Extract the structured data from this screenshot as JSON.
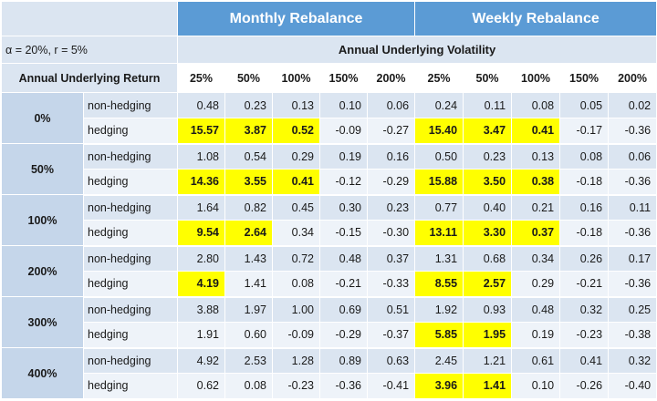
{
  "header": {
    "monthly": "Monthly Rebalance",
    "weekly": "Weekly Rebalance",
    "params": "α = 20%, r = 5%",
    "vol_title": "Annual Underlying Volatility",
    "return_title": "Annual Underlying Return",
    "vols": [
      "25%",
      "50%",
      "100%",
      "150%",
      "200%",
      "25%",
      "50%",
      "100%",
      "150%",
      "200%"
    ]
  },
  "groups": [
    {
      "label": "0%",
      "rows": [
        {
          "kind": "non-hedging",
          "values": [
            "0.48",
            "0.23",
            "0.13",
            "0.10",
            "0.06",
            "0.24",
            "0.11",
            "0.08",
            "0.05",
            "0.02"
          ],
          "hl": [
            false,
            false,
            false,
            false,
            false,
            false,
            false,
            false,
            false,
            false
          ]
        },
        {
          "kind": "hedging",
          "values": [
            "15.57",
            "3.87",
            "0.52",
            "-0.09",
            "-0.27",
            "15.40",
            "3.47",
            "0.41",
            "-0.17",
            "-0.36"
          ],
          "hl": [
            true,
            true,
            true,
            false,
            false,
            true,
            true,
            true,
            false,
            false
          ]
        }
      ]
    },
    {
      "label": "50%",
      "rows": [
        {
          "kind": "non-hedging",
          "values": [
            "1.08",
            "0.54",
            "0.29",
            "0.19",
            "0.16",
            "0.50",
            "0.23",
            "0.13",
            "0.08",
            "0.06"
          ],
          "hl": [
            false,
            false,
            false,
            false,
            false,
            false,
            false,
            false,
            false,
            false
          ]
        },
        {
          "kind": "hedging",
          "values": [
            "14.36",
            "3.55",
            "0.41",
            "-0.12",
            "-0.29",
            "15.88",
            "3.50",
            "0.38",
            "-0.18",
            "-0.36"
          ],
          "hl": [
            true,
            true,
            true,
            false,
            false,
            true,
            true,
            true,
            false,
            false
          ]
        }
      ]
    },
    {
      "label": "100%",
      "rows": [
        {
          "kind": "non-hedging",
          "values": [
            "1.64",
            "0.82",
            "0.45",
            "0.30",
            "0.23",
            "0.77",
            "0.40",
            "0.21",
            "0.16",
            "0.11"
          ],
          "hl": [
            false,
            false,
            false,
            false,
            false,
            false,
            false,
            false,
            false,
            false
          ]
        },
        {
          "kind": "hedging",
          "values": [
            "9.54",
            "2.64",
            "0.34",
            "-0.15",
            "-0.30",
            "13.11",
            "3.30",
            "0.37",
            "-0.18",
            "-0.36"
          ],
          "hl": [
            true,
            true,
            false,
            false,
            false,
            true,
            true,
            true,
            false,
            false
          ]
        }
      ]
    },
    {
      "label": "200%",
      "rows": [
        {
          "kind": "non-hedging",
          "values": [
            "2.80",
            "1.43",
            "0.72",
            "0.48",
            "0.37",
            "1.31",
            "0.68",
            "0.34",
            "0.26",
            "0.17"
          ],
          "hl": [
            false,
            false,
            false,
            false,
            false,
            false,
            false,
            false,
            false,
            false
          ]
        },
        {
          "kind": "hedging",
          "values": [
            "4.19",
            "1.41",
            "0.08",
            "-0.21",
            "-0.33",
            "8.55",
            "2.57",
            "0.29",
            "-0.21",
            "-0.36"
          ],
          "hl": [
            true,
            false,
            false,
            false,
            false,
            true,
            true,
            false,
            false,
            false
          ]
        }
      ]
    },
    {
      "label": "300%",
      "rows": [
        {
          "kind": "non-hedging",
          "values": [
            "3.88",
            "1.97",
            "1.00",
            "0.69",
            "0.51",
            "1.92",
            "0.93",
            "0.48",
            "0.32",
            "0.25"
          ],
          "hl": [
            false,
            false,
            false,
            false,
            false,
            false,
            false,
            false,
            false,
            false
          ]
        },
        {
          "kind": "hedging",
          "values": [
            "1.91",
            "0.60",
            "-0.09",
            "-0.29",
            "-0.37",
            "5.85",
            "1.95",
            "0.19",
            "-0.23",
            "-0.38"
          ],
          "hl": [
            false,
            false,
            false,
            false,
            false,
            true,
            true,
            false,
            false,
            false
          ]
        }
      ]
    },
    {
      "label": "400%",
      "rows": [
        {
          "kind": "non-hedging",
          "values": [
            "4.92",
            "2.53",
            "1.28",
            "0.89",
            "0.63",
            "2.45",
            "1.21",
            "0.61",
            "0.41",
            "0.32"
          ],
          "hl": [
            false,
            false,
            false,
            false,
            false,
            false,
            false,
            false,
            false,
            false
          ]
        },
        {
          "kind": "hedging",
          "values": [
            "0.62",
            "0.08",
            "-0.23",
            "-0.36",
            "-0.41",
            "3.96",
            "1.41",
            "0.10",
            "-0.26",
            "-0.40"
          ],
          "hl": [
            false,
            false,
            false,
            false,
            false,
            true,
            true,
            false,
            false,
            false
          ]
        }
      ]
    }
  ],
  "colors": {
    "header_blue": "#5b9bd5",
    "light_blue": "#dbe5f1",
    "group_blue": "#c5d6ea",
    "highlight": "#ffff00"
  }
}
